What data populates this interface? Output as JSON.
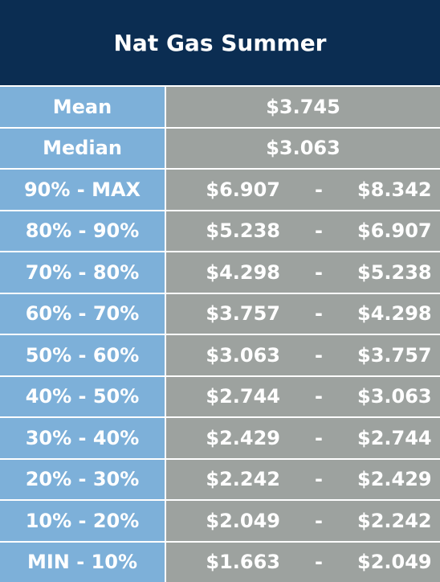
{
  "header": {
    "title": "Nat Gas Summer"
  },
  "stats": [
    [
      "Mean",
      "$3.745"
    ],
    [
      "Median",
      "$3.063"
    ]
  ],
  "ranges": [
    [
      "90% - MAX",
      "$6.907",
      "-",
      "$8.342"
    ],
    [
      "80% - 90%",
      "$5.238",
      "-",
      "$6.907"
    ],
    [
      "70% - 80%",
      "$4.298",
      "-",
      "$5.238"
    ],
    [
      "60% - 70%",
      "$3.757",
      "-",
      "$4.298"
    ],
    [
      "50% - 60%",
      "$3.063",
      "-",
      "$3.757"
    ],
    [
      "40% - 50%",
      "$2.744",
      "-",
      "$3.063"
    ],
    [
      "30% - 40%",
      "$2.429",
      "-",
      "$2.744"
    ],
    [
      "20% - 30%",
      "$2.242",
      "-",
      "$2.429"
    ],
    [
      "10% - 20%",
      "$2.049",
      "-",
      "$2.242"
    ],
    [
      "MIN - 10%",
      "$1.663",
      "-",
      "$2.049"
    ]
  ]
}
